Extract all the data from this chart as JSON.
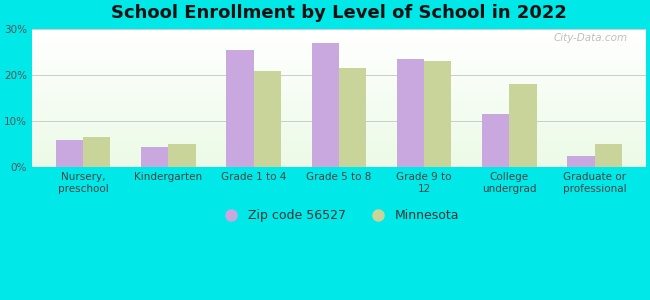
{
  "title": "School Enrollment by Level of School in 2022",
  "categories": [
    "Nursery,\npreschool",
    "Kindergarten",
    "Grade 1 to 4",
    "Grade 5 to 8",
    "Grade 9 to\n12",
    "College\nundergrad",
    "Graduate or\nprofessional"
  ],
  "zip_values": [
    6.0,
    4.5,
    25.5,
    27.0,
    23.5,
    11.5,
    2.5
  ],
  "mn_values": [
    6.5,
    5.0,
    21.0,
    21.5,
    23.0,
    18.0,
    5.0
  ],
  "zip_color": "#c9a8e0",
  "mn_color": "#c8d49a",
  "background_outer": "#00e8e8",
  "ylim": [
    0,
    30
  ],
  "yticks": [
    0,
    10,
    20,
    30
  ],
  "ytick_labels": [
    "0%",
    "10%",
    "20%",
    "30%"
  ],
  "grid_color": "#cccccc",
  "title_fontsize": 13,
  "tick_fontsize": 7.5,
  "legend_fontsize": 9,
  "bar_width": 0.32,
  "watermark": "City-Data.com"
}
